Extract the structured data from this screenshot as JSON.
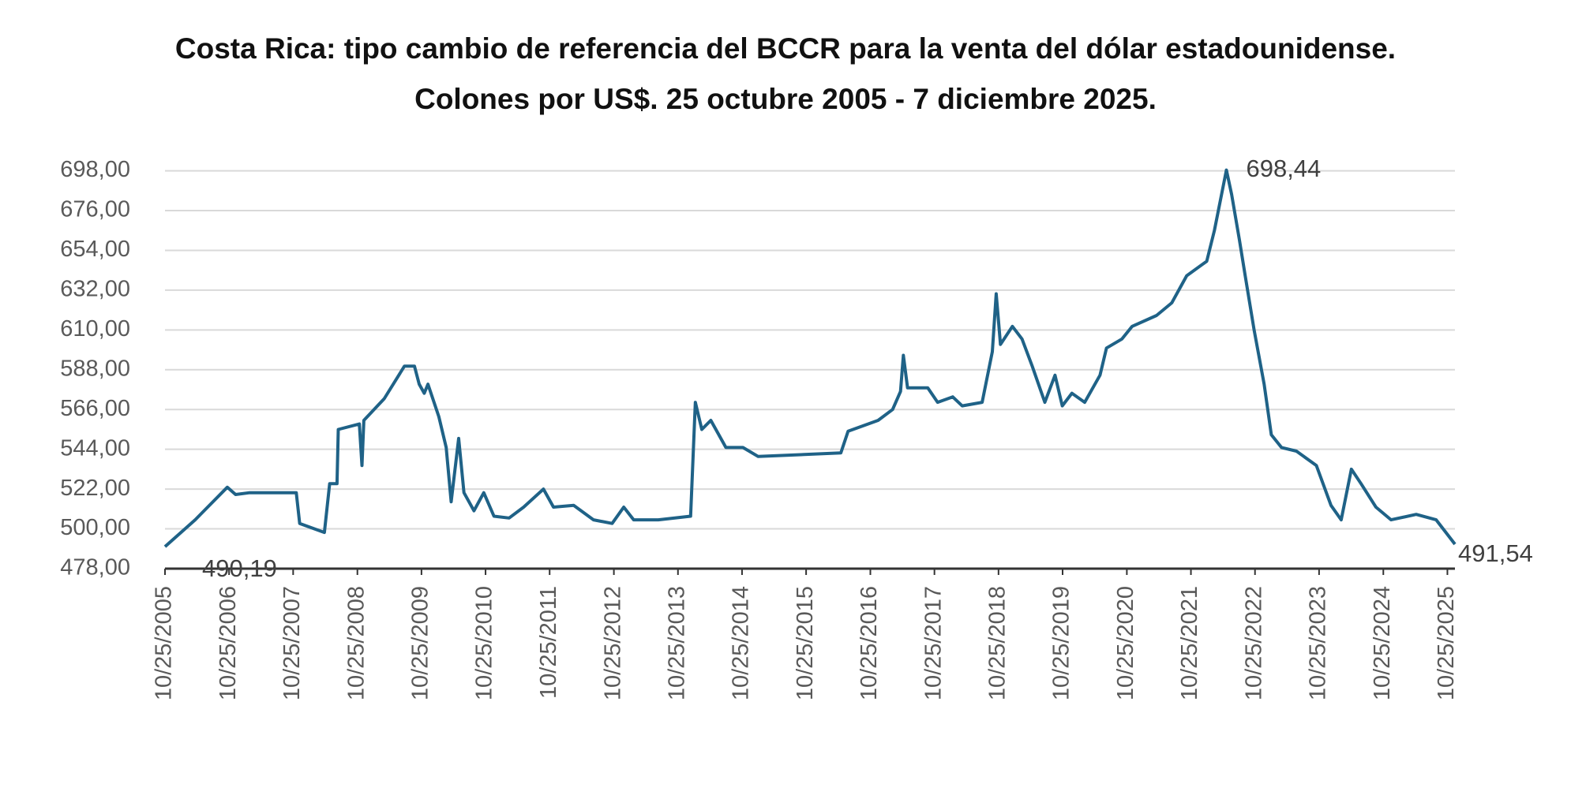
{
  "chart_data": {
    "type": "line",
    "title": "Costa Rica: tipo cambio de referencia del BCCR para la venta del dólar estadounidense. Colones por US$. 25 octubre 2005 - 7 diciembre 2025.",
    "x": [
      "2005-10-25",
      "2006-04-15",
      "2006-10-15",
      "2006-12-01",
      "2007-02-20",
      "2007-11-12",
      "2007-12-01",
      "2008-04-20",
      "2008-05-20",
      "2008-07-01",
      "2008-07-08",
      "2008-11-05",
      "2008-11-20",
      "2008-12-01",
      "2009-03-27",
      "2009-07-20",
      "2009-09-15",
      "2009-10-12",
      "2009-11-10",
      "2009-12-01",
      "2010-02-01",
      "2010-03-15",
      "2010-04-12",
      "2010-05-25",
      "2010-06-24",
      "2010-08-20",
      "2010-10-15",
      "2010-12-12",
      "2011-03-08",
      "2011-05-30",
      "2011-09-20",
      "2011-11-16",
      "2012-03-10",
      "2012-07-01",
      "2012-10-15",
      "2012-12-20",
      "2013-02-15",
      "2013-07-05",
      "2014-01-05",
      "2014-02-01",
      "2014-03-10",
      "2014-04-30",
      "2014-07-25",
      "2014-10-30",
      "2015-01-25",
      "2015-09-10",
      "2016-05-10",
      "2016-06-20",
      "2016-12-08",
      "2017-03-01",
      "2017-04-15",
      "2017-05-01",
      "2017-05-25",
      "2017-09-17",
      "2017-11-12",
      "2018-02-06",
      "2018-04-01",
      "2018-07-24",
      "2018-09-20",
      "2018-10-12",
      "2018-11-05",
      "2019-01-12",
      "2019-03-08",
      "2019-05-05",
      "2019-07-16",
      "2019-09-12",
      "2019-10-23",
      "2019-12-17",
      "2020-02-28",
      "2020-05-25",
      "2020-07-01",
      "2020-09-27",
      "2020-11-24",
      "2021-04-12",
      "2021-07-08",
      "2021-10-01",
      "2022-01-23",
      "2022-03-08",
      "2022-05-15",
      "2022-06-14",
      "2022-07-28",
      "2022-08-30",
      "2022-10-20",
      "2022-12-16",
      "2023-01-26",
      "2023-03-25",
      "2023-06-18",
      "2023-10-10",
      "2024-01-01",
      "2024-02-28",
      "2024-04-26",
      "2024-06-20",
      "2024-09-13",
      "2024-12-08",
      "2025-04-30",
      "2025-08-22",
      "2025-12-07"
    ],
    "values": [
      490.19,
      505,
      523,
      519,
      520,
      520,
      503,
      498,
      525,
      525,
      555,
      558,
      535,
      560,
      572,
      590,
      590,
      580,
      575,
      580,
      562,
      545,
      515,
      550,
      520,
      510,
      520,
      507,
      506,
      512,
      522,
      512,
      513,
      505,
      503,
      512,
      505,
      505,
      507,
      570,
      555,
      560,
      545,
      545,
      540,
      541,
      542,
      554,
      560,
      566,
      576,
      596,
      578,
      578,
      570,
      573,
      568,
      570,
      598,
      630,
      602,
      612,
      605,
      590,
      570,
      585,
      568,
      575,
      570,
      585,
      600,
      605,
      612,
      618,
      625,
      640,
      648,
      665,
      698.44,
      685,
      660,
      640,
      610,
      580,
      552,
      545,
      543,
      535,
      513,
      505,
      533,
      525,
      512,
      505,
      508,
      505,
      491.54
    ],
    "value_labels": [
      "490,19",
      null,
      null,
      null,
      null,
      null,
      null,
      null,
      null,
      null,
      null,
      null,
      null,
      null,
      null,
      null,
      null,
      null,
      null,
      null,
      null,
      null,
      null,
      null,
      null,
      null,
      null,
      null,
      null,
      null,
      null,
      null,
      null,
      null,
      null,
      null,
      null,
      null,
      null,
      null,
      null,
      null,
      null,
      null,
      null,
      null,
      null,
      null,
      null,
      null,
      null,
      null,
      null,
      null,
      null,
      null,
      null,
      null,
      null,
      null,
      null,
      null,
      null,
      null,
      null,
      null,
      null,
      null,
      null,
      null,
      null,
      null,
      null,
      null,
      null,
      null,
      null,
      null,
      "698,44",
      null,
      null,
      null,
      null,
      null,
      null,
      null,
      null,
      null,
      null,
      null,
      null,
      null,
      null,
      null,
      null,
      null,
      "491,54"
    ],
    "color": "#1f6287",
    "xlim": [
      "2005-10-25",
      "2025-12-07"
    ],
    "xticks": [
      {
        "value": "2005-10-25",
        "label": "10/25/2005"
      },
      {
        "value": "2006-10-25",
        "label": "10/25/2006"
      },
      {
        "value": "2007-10-25",
        "label": "10/25/2007"
      },
      {
        "value": "2008-10-25",
        "label": "10/25/2008"
      },
      {
        "value": "2009-10-25",
        "label": "10/25/2009"
      },
      {
        "value": "2010-10-25",
        "label": "10/25/2010"
      },
      {
        "value": "2011-10-25",
        "label": "10/25/2011"
      },
      {
        "value": "2012-10-25",
        "label": "10/25/2012"
      },
      {
        "value": "2013-10-25",
        "label": "10/25/2013"
      },
      {
        "value": "2014-10-25",
        "label": "10/25/2014"
      },
      {
        "value": "2015-10-25",
        "label": "10/25/2015"
      },
      {
        "value": "2016-10-25",
        "label": "10/25/2016"
      },
      {
        "value": "2017-10-25",
        "label": "10/25/2017"
      },
      {
        "value": "2018-10-25",
        "label": "10/25/2018"
      },
      {
        "value": "2019-10-25",
        "label": "10/25/2019"
      },
      {
        "value": "2020-10-25",
        "label": "10/25/2020"
      },
      {
        "value": "2021-10-25",
        "label": "10/25/2021"
      },
      {
        "value": "2022-10-25",
        "label": "10/25/2022"
      },
      {
        "value": "2023-10-25",
        "label": "10/25/2023"
      },
      {
        "value": "2024-10-25",
        "label": "10/25/2024"
      },
      {
        "value": "2025-10-25",
        "label": "10/25/2025"
      }
    ],
    "ylim": [
      478,
      700
    ],
    "yticks": [
      {
        "value": 478,
        "label": "478,00"
      },
      {
        "value": 500,
        "label": "500,00"
      },
      {
        "value": 522,
        "label": "522,00"
      },
      {
        "value": 544,
        "label": "544,00"
      },
      {
        "value": 566,
        "label": "566,00"
      },
      {
        "value": 588,
        "label": "588,00"
      },
      {
        "value": 610,
        "label": "610,00"
      },
      {
        "value": 632,
        "label": "632,00"
      },
      {
        "value": 654,
        "label": "654,00"
      },
      {
        "value": 676,
        "label": "676,00"
      },
      {
        "value": 698,
        "label": "698,00"
      }
    ],
    "grid": true
  }
}
